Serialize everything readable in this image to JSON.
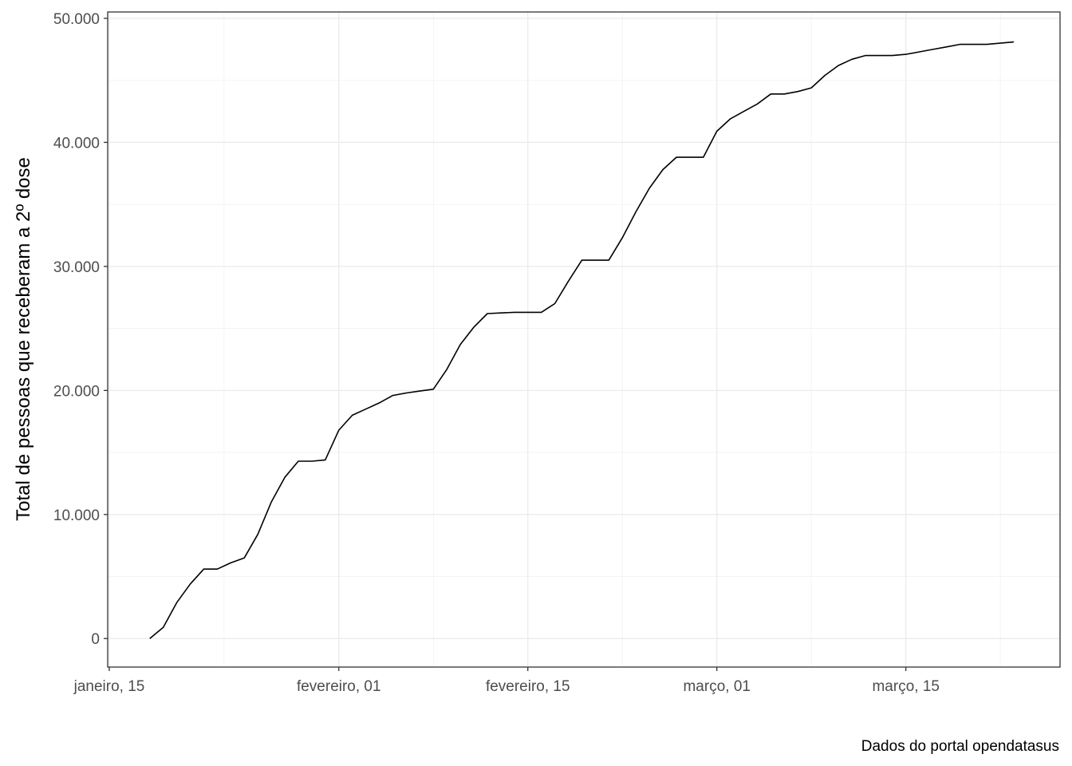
{
  "chart_data": {
    "type": "line",
    "title": "",
    "xlabel": "",
    "ylabel": "Total de pessoas que receberam a 2º dose",
    "caption": "Dados do portal opendatasus",
    "x_ticks": [
      "janeiro, 15",
      "fevereiro, 01",
      "fevereiro, 15",
      "março, 01",
      "março, 15"
    ],
    "y_ticks": [
      "0",
      "10.000",
      "20.000",
      "30.000",
      "40.000",
      "50.000"
    ],
    "grid": true,
    "colors": {
      "line": "#000000",
      "grid": "#ebebeb",
      "panel_border": "#333333"
    },
    "series": [
      {
        "x": [
          "2021-01-18",
          "2021-01-19",
          "2021-01-20",
          "2021-01-21",
          "2021-01-22",
          "2021-01-23",
          "2021-01-24",
          "2021-01-25",
          "2021-01-26",
          "2021-01-27",
          "2021-01-28",
          "2021-01-29",
          "2021-01-30",
          "2021-01-31",
          "2021-02-01",
          "2021-02-02",
          "2021-02-03",
          "2021-02-04",
          "2021-02-05",
          "2021-02-06",
          "2021-02-07",
          "2021-02-08",
          "2021-02-09",
          "2021-02-10",
          "2021-02-11",
          "2021-02-12",
          "2021-02-13",
          "2021-02-14",
          "2021-02-15",
          "2021-02-16",
          "2021-02-17",
          "2021-02-18",
          "2021-02-19",
          "2021-02-20",
          "2021-02-21",
          "2021-02-22",
          "2021-02-23",
          "2021-02-24",
          "2021-02-25",
          "2021-02-26",
          "2021-02-27",
          "2021-02-28",
          "2021-03-01",
          "2021-03-02",
          "2021-03-03",
          "2021-03-04",
          "2021-03-05",
          "2021-03-06",
          "2021-03-07",
          "2021-03-08",
          "2021-03-09",
          "2021-03-10",
          "2021-03-11",
          "2021-03-12",
          "2021-03-13",
          "2021-03-14",
          "2021-03-15",
          "2021-03-16",
          "2021-03-17",
          "2021-03-18",
          "2021-03-19",
          "2021-03-20",
          "2021-03-21",
          "2021-03-22",
          "2021-03-23"
        ],
        "y": [
          0,
          900,
          2900,
          4400,
          5600,
          5600,
          6100,
          6500,
          8400,
          11000,
          13000,
          14300,
          14300,
          14400,
          16800,
          18000,
          18500,
          19000,
          19600,
          19800,
          19950,
          20100,
          21700,
          23700,
          25100,
          26200,
          26250,
          26300,
          26300,
          26300,
          27000,
          28800,
          30500,
          30500,
          30500,
          32300,
          34400,
          36300,
          37800,
          38800,
          38800,
          38800,
          40900,
          41900,
          42500,
          43100,
          43900,
          43900,
          44100,
          44400,
          45400,
          46200,
          46700,
          47000,
          47000,
          47000,
          47100,
          47300,
          47500,
          47700,
          47900,
          47900,
          47900,
          48000,
          48100
        ]
      }
    ],
    "xlim": [
      "2021-01-15",
      "2021-03-25"
    ],
    "ylim": [
      -2300,
      50000
    ]
  }
}
